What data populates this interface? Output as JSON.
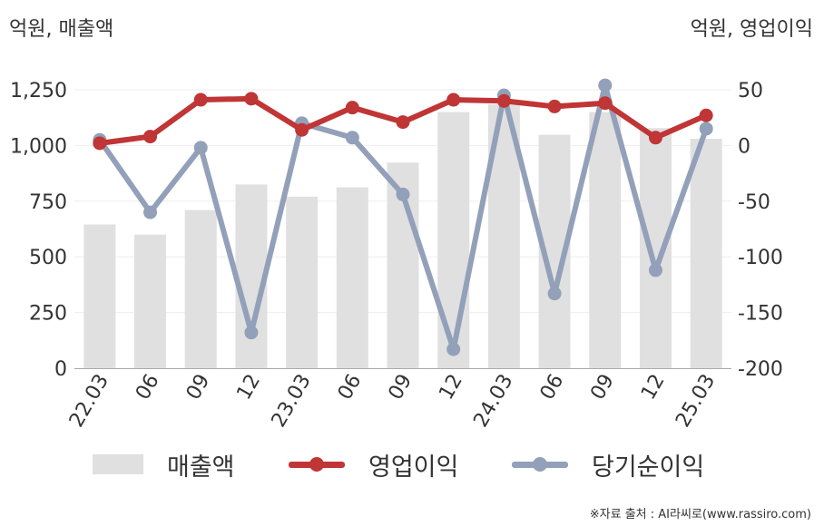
{
  "units": {
    "left": "억원, 매출액",
    "right": "억원, 영업이익"
  },
  "source": "※자료 출처 : AI라씨로(www.rassiro.com)",
  "colors": {
    "revenue": "#e0e0e0",
    "operating_profit": "#c03535",
    "net_income": "#92a0b9",
    "grid": "#eeeeee",
    "axis": "#aaaaaa"
  },
  "legend": {
    "revenue": "매출액",
    "operating_profit": "영업이익",
    "net_income": "당기순이익"
  },
  "chart_data": {
    "type": "bar",
    "categories": [
      "22.03",
      "06",
      "09",
      "12",
      "23.03",
      "06",
      "09",
      "12",
      "24.03",
      "06",
      "09",
      "12",
      "25.03"
    ],
    "y_left": {
      "ticks": [
        "0",
        "250",
        "500",
        "750",
        "1,000",
        "1,250"
      ],
      "tick_values": [
        0,
        250,
        500,
        750,
        1000,
        1250
      ],
      "ylim": [
        0,
        1250
      ]
    },
    "y_right": {
      "ticks": [
        "-200",
        "-150",
        "-100",
        "-50",
        "0",
        "50"
      ],
      "tick_values": [
        -200,
        -150,
        -100,
        -50,
        0,
        50
      ],
      "ylim": [
        -200,
        50
      ]
    },
    "grid": true,
    "legend_position": "bottom",
    "series": [
      {
        "name": "매출액",
        "type": "bar",
        "axis": "left",
        "values": [
          645,
          600,
          710,
          825,
          770,
          812,
          923,
          1150,
          1185,
          1048,
          1150,
          1078,
          1030
        ]
      },
      {
        "name": "영업이익",
        "type": "line",
        "axis": "right",
        "values": [
          2,
          8,
          41,
          42,
          14,
          34,
          21,
          41,
          40,
          35,
          38,
          7,
          27
        ]
      },
      {
        "name": "당기순이익",
        "type": "line",
        "axis": "right",
        "values": [
          5,
          -60,
          -2,
          -168,
          20,
          7,
          -44,
          -183,
          45,
          -133,
          54,
          -112,
          15
        ]
      }
    ]
  }
}
